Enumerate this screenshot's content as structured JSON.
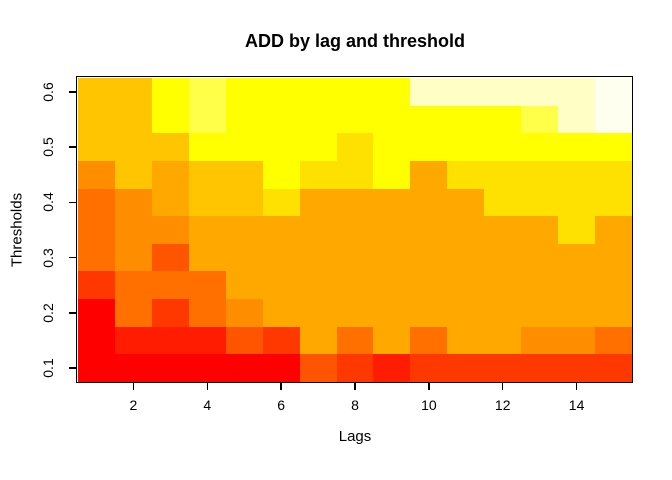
{
  "title": "ADD by lag and threshold",
  "axes": {
    "xlabel": "Lags",
    "ylabel": "Thresholds",
    "x_tick_labels": [
      "2",
      "4",
      "6",
      "8",
      "10",
      "12",
      "14"
    ],
    "y_tick_labels": [
      "0.1",
      "0.2",
      "0.3",
      "0.4",
      "0.5",
      "0.6"
    ]
  },
  "chart_data": {
    "type": "heatmap",
    "title": "ADD by lag and threshold",
    "xlabel": "Lags",
    "ylabel": "Thresholds",
    "x_values_lags": [
      1,
      2,
      3,
      4,
      5,
      6,
      7,
      8,
      9,
      10,
      11,
      12,
      13,
      14,
      15
    ],
    "y_values_thresholds": [
      0.1,
      0.15,
      0.2,
      0.25,
      0.3,
      0.35,
      0.4,
      0.45,
      0.5,
      0.55,
      0.6
    ],
    "x_ticks": [
      2,
      4,
      6,
      8,
      10,
      12,
      14
    ],
    "y_ticks": [
      0.1,
      0.2,
      0.3,
      0.4,
      0.5,
      0.6
    ],
    "legend": "none",
    "grid_lines": false,
    "border_color": "#000000",
    "background": "#FFFFFF",
    "palette_low_to_high": [
      "#FF0000",
      "#FF1C00",
      "#FF3800",
      "#FF5400",
      "#FF7000",
      "#FF8D00",
      "#FFA900",
      "#FFC500",
      "#FFE100",
      "#FFFF00",
      "#FFFF20",
      "#FFFF49",
      "#FFFF73",
      "#FFFF9C",
      "#FFFFC5",
      "#FFFFEF"
    ],
    "rows_order": "top_to_bottom_threshold_0.60_to_0.10",
    "grid_palette_index": [
      [
        8,
        8,
        10,
        12,
        10,
        10,
        10,
        10,
        10,
        15,
        15,
        15,
        15,
        15,
        16
      ],
      [
        8,
        8,
        10,
        12,
        10,
        10,
        10,
        10,
        10,
        10,
        10,
        10,
        12,
        15,
        16
      ],
      [
        8,
        8,
        8,
        10,
        10,
        10,
        10,
        9,
        10,
        10,
        10,
        10,
        10,
        10,
        10
      ],
      [
        6,
        8,
        7,
        8,
        8,
        10,
        9,
        9,
        10,
        7,
        9,
        9,
        9,
        9,
        9
      ],
      [
        5,
        6,
        7,
        8,
        8,
        9,
        7,
        7,
        7,
        7,
        7,
        9,
        9,
        9,
        9
      ],
      [
        5,
        6,
        6,
        7,
        7,
        7,
        7,
        7,
        7,
        7,
        7,
        7,
        7,
        9,
        7
      ],
      [
        5,
        6,
        4,
        7,
        7,
        7,
        7,
        7,
        7,
        7,
        7,
        7,
        7,
        7,
        7
      ],
      [
        3,
        5,
        5,
        5,
        7,
        7,
        7,
        7,
        7,
        7,
        7,
        7,
        7,
        7,
        7
      ],
      [
        1,
        5,
        3,
        5,
        6,
        7,
        7,
        7,
        7,
        7,
        7,
        7,
        7,
        7,
        7
      ],
      [
        1,
        2,
        2,
        2,
        4,
        3,
        7,
        5,
        7,
        5,
        7,
        7,
        6,
        6,
        5
      ],
      [
        1,
        1,
        1,
        1,
        1,
        1,
        4,
        3,
        2,
        3,
        3,
        3,
        3,
        3,
        3
      ]
    ]
  }
}
